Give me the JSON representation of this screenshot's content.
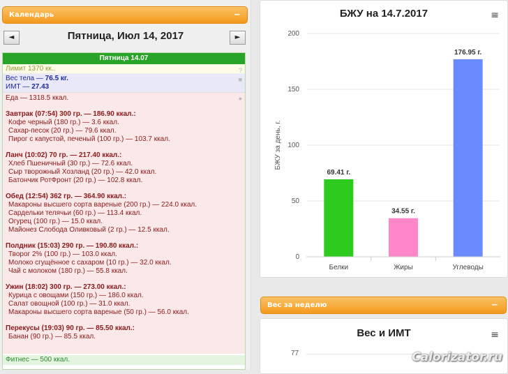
{
  "calendar": {
    "header": "Календарь",
    "minimize": "‒",
    "prev": "◄",
    "next": "►",
    "date_title": "Пятница, Июл 14, 2017",
    "day_bar": "Пятница 14.07",
    "limit": "Лимит 1370 кк..",
    "weight_line": "Вес тела — ",
    "weight_value": "76.5 кг.",
    "bmi_line": "ИМТ — ",
    "bmi_value": "27.43",
    "food_total": "Еда — 1318.5 ккал.",
    "meals": [
      {
        "title": "Завтрак (07:54) 300 гр. — 186.90 ккал.:",
        "items": [
          "Кофе черный (180 гр.) — 3.6 ккал.",
          "Сахар-песок (20 гр.) — 79.6 ккал.",
          "Пирог с капустой, печеный (100 гр.) — 103.7 ккал."
        ]
      },
      {
        "title": "Ланч (10:02) 70 гр. — 217.40 ккал.:",
        "items": [
          "Хлеб Пшеничный (30 гр.) — 72.6 ккал.",
          "Сыр творожный Хозланд (20 гр.) — 42.0 ккал.",
          "Батончик РотФронт (20 гр.) — 102.8 ккал."
        ]
      },
      {
        "title": "Обед (12:54) 362 гр. — 364.90 ккал.:",
        "items": [
          "Макароны высшего сорта вареные (200 гр.) — 224.0 ккал.",
          "Сардельки телячьи (60 гр.) — 113.4 ккал.",
          "Огурец (100 гр.) — 15.0 ккал.",
          "Майонез Слобода Оливковый (2 гр.) — 12.5 ккал."
        ]
      },
      {
        "title": "Полдник (15:03) 290 гр. — 190.80 ккал.:",
        "items": [
          "Творог 2% (100 гр.) — 103.0 ккал.",
          "Молоко сгущённое с сахаром (10 гр.) — 32.0 ккал.",
          "Чай с молоком (180 гр.) — 55.8 ккал."
        ]
      },
      {
        "title": "Ужин (18:02) 300 гр. — 273.00 ккал.:",
        "items": [
          "Курица с овощами (150 гр.) — 186.0 ккал.",
          "Салат овощной (100 гр.) — 31.0 ккал.",
          "Макароны высшего сорта вареные (50 гр.) — 56.0 ккал."
        ]
      },
      {
        "title": "Перекусы (19:03) 90 гр. — 85.50 ккал.:",
        "items": [
          "Банан (90 гр.) — 85.5 ккал."
        ]
      }
    ],
    "fitness": "Фитнес — 500 ккал."
  },
  "chart_data": {
    "type": "bar",
    "title": "БЖУ на 14.7.2017",
    "ylabel": "БЖУ за день, г.",
    "categories": [
      "Белки",
      "Жиры",
      "Углеводы"
    ],
    "values": [
      69.41,
      34.55,
      176.95
    ],
    "value_labels": [
      "69.41 г.",
      "34.55 г.",
      "176.95 г."
    ],
    "colors": [
      "#2ecb1f",
      "#ff86c8",
      "#6b8afd"
    ],
    "ylim": [
      0,
      200
    ],
    "yticks": [
      "0",
      "50",
      "100",
      "150",
      "200"
    ]
  },
  "weekly": {
    "header": "Вес за неделю",
    "minimize": "‒",
    "chart_title": "Вес и ИМТ",
    "first_tick": "77"
  },
  "menu_icon": "≡",
  "watermark": "Calorizator.ru"
}
